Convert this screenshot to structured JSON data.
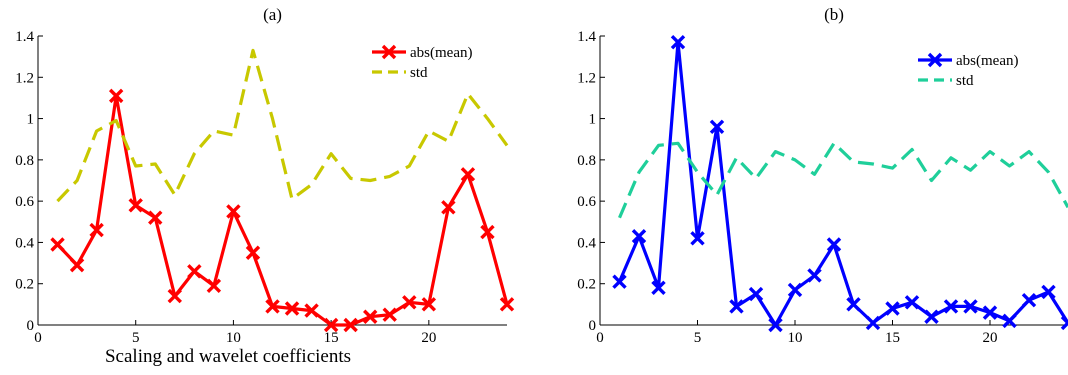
{
  "chart_data": [
    {
      "type": "line",
      "title": "(a)",
      "xlabel": "Scaling and wavelet coefficients",
      "ylabel": "",
      "xlim": [
        0,
        24
      ],
      "ylim": [
        0,
        1.4
      ],
      "xticks": [
        "0",
        "5",
        "10",
        "15",
        "20"
      ],
      "yticks": [
        "0",
        "0.2",
        "0.4",
        "0.6",
        "0.8",
        "1",
        "1.2",
        "1.4"
      ],
      "grid": false,
      "legend_position": "top-right",
      "x": [
        1,
        2,
        3,
        4,
        5,
        6,
        7,
        8,
        9,
        10,
        11,
        12,
        13,
        14,
        15,
        16,
        17,
        18,
        19,
        20,
        21,
        22,
        23,
        24
      ],
      "series": [
        {
          "name": "abs(mean)",
          "color": "#ff0000",
          "style": "solid",
          "marker": "x",
          "values": [
            0.39,
            0.29,
            0.46,
            1.11,
            0.58,
            0.52,
            0.14,
            0.26,
            0.19,
            0.55,
            0.35,
            0.09,
            0.08,
            0.07,
            0.0,
            0.0,
            0.04,
            0.05,
            0.11,
            0.1,
            0.57,
            0.73,
            0.45,
            0.1
          ]
        },
        {
          "name": "std",
          "color": "#c8c800",
          "style": "dashed",
          "marker": "none",
          "values": [
            0.6,
            0.7,
            0.94,
            0.99,
            0.77,
            0.78,
            0.63,
            0.83,
            0.94,
            0.92,
            1.33,
            1.0,
            0.61,
            0.68,
            0.83,
            0.71,
            0.7,
            0.72,
            0.77,
            0.94,
            0.89,
            1.12,
            1.0,
            0.87
          ]
        }
      ]
    },
    {
      "type": "line",
      "title": "(b)",
      "xlabel": "",
      "ylabel": "",
      "xlim": [
        0,
        24
      ],
      "ylim": [
        0,
        1.4
      ],
      "xticks": [
        "0",
        "5",
        "10",
        "15",
        "20"
      ],
      "yticks": [
        "0",
        "0.2",
        "0.4",
        "0.6",
        "0.8",
        "1",
        "1.2",
        "1.4"
      ],
      "grid": false,
      "legend_position": "top-right",
      "x": [
        1,
        2,
        3,
        4,
        5,
        6,
        7,
        8,
        9,
        10,
        11,
        12,
        13,
        14,
        15,
        16,
        17,
        18,
        19,
        20,
        21,
        22,
        23,
        24
      ],
      "series": [
        {
          "name": "abs(mean)",
          "color": "#0000ff",
          "style": "solid",
          "marker": "x",
          "values": [
            0.21,
            0.43,
            0.18,
            1.37,
            0.42,
            0.96,
            0.09,
            0.15,
            0.0,
            0.17,
            0.24,
            0.39,
            0.1,
            0.01,
            0.08,
            0.11,
            0.04,
            0.09,
            0.09,
            0.06,
            0.02,
            0.12,
            0.16,
            0.01
          ]
        },
        {
          "name": "std",
          "color": "#1fcf9a",
          "style": "dashed",
          "marker": "none",
          "values": [
            0.52,
            0.74,
            0.87,
            0.88,
            0.74,
            0.63,
            0.81,
            0.71,
            0.84,
            0.8,
            0.73,
            0.88,
            0.79,
            0.78,
            0.76,
            0.85,
            0.7,
            0.81,
            0.75,
            0.84,
            0.77,
            0.84,
            0.74,
            0.57
          ]
        }
      ]
    }
  ]
}
